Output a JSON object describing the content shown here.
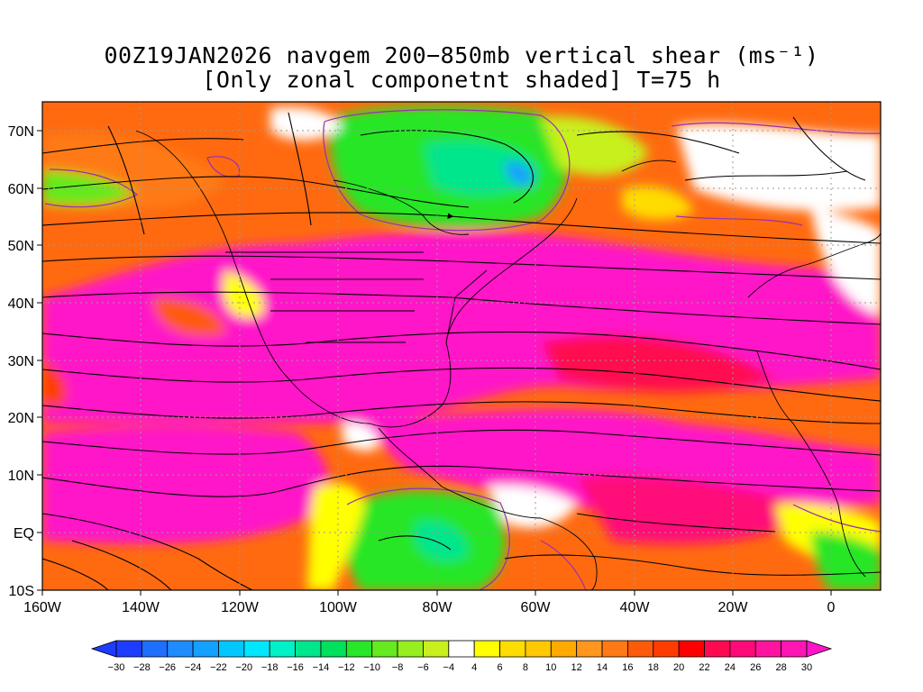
{
  "title": {
    "line1": "00Z19JAN2026 navgem 200−850mb vertical shear (ms⁻¹)",
    "line2": "[Only zonal componetnt shaded] T=75 h"
  },
  "map": {
    "lat_labels": [
      "70N",
      "60N",
      "50N",
      "40N",
      "30N",
      "20N",
      "10N",
      "EQ",
      "10S"
    ],
    "lon_labels": [
      "160W",
      "140W",
      "120W",
      "100W",
      "80W",
      "60W",
      "40W",
      "20W",
      "0"
    ],
    "lon_range": [
      -160,
      10
    ],
    "lat_range": [
      -10,
      75
    ],
    "shading_variable": "zonal component of 200-850mb vertical shear",
    "contour_color": "#9a2fb0",
    "streamline_color": "#000000",
    "gridline_style": "dotted"
  },
  "colorbar": {
    "labels": [
      "−30",
      "−28",
      "−26",
      "−24",
      "−22",
      "−20",
      "−18",
      "−16",
      "−14",
      "−12",
      "−10",
      "−8",
      "−6",
      "−4",
      "4",
      "6",
      "8",
      "10",
      "12",
      "14",
      "16",
      "18",
      "20",
      "22",
      "24",
      "26",
      "28",
      "30"
    ],
    "colors": [
      "#1e3cff",
      "#1e3cff",
      "#1e6eff",
      "#1e8cff",
      "#14a0ff",
      "#00c8ff",
      "#00e6ff",
      "#00f0c8",
      "#00e68c",
      "#00e05a",
      "#28e628",
      "#64ea1e",
      "#96ee1e",
      "#c8f01e",
      "#ffffff",
      "#ffff00",
      "#ffdc00",
      "#ffc800",
      "#ffaa00",
      "#ff961e",
      "#ff7a14",
      "#ff5a0a",
      "#ff3c00",
      "#ff0000",
      "#ff0a50",
      "#ff0a78",
      "#ff14a0",
      "#ff14b4",
      "#ff14c8"
    ]
  }
}
